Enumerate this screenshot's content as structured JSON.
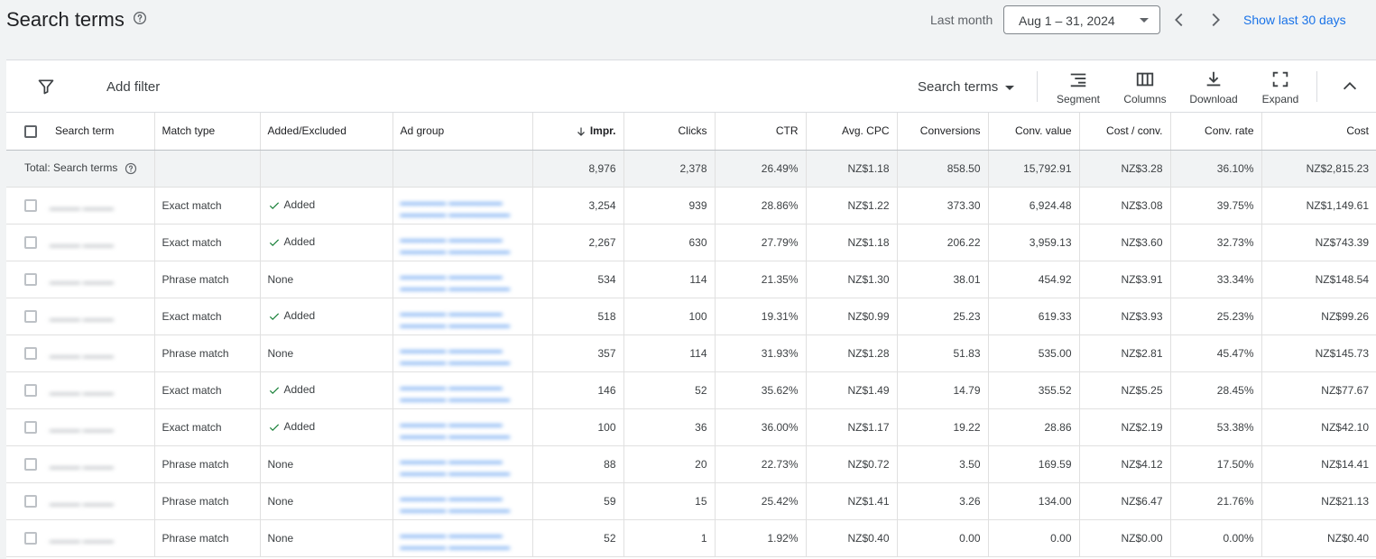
{
  "header": {
    "title": "Search terms",
    "date_label": "Last month",
    "date_range": "Aug 1 – 31, 2024",
    "show_last": "Show last 30 days"
  },
  "toolbar": {
    "add_filter": "Add filter",
    "view_select": "Search terms",
    "segment": "Segment",
    "columns": "Columns",
    "download": "Download",
    "expand": "Expand"
  },
  "table": {
    "headers": {
      "search_term": "Search term",
      "match_type": "Match type",
      "added_excluded": "Added/Excluded",
      "ad_group": "Ad group",
      "impr": "Impr.",
      "clicks": "Clicks",
      "ctr": "CTR",
      "avg_cpc": "Avg. CPC",
      "conversions": "Conversions",
      "conv_value": "Conv. value",
      "cost_per_conv": "Cost / conv.",
      "conv_rate": "Conv. rate",
      "cost": "Cost"
    },
    "total": {
      "label": "Total: Search terms",
      "impr": "8,976",
      "clicks": "2,378",
      "ctr": "26.49%",
      "avg_cpc": "NZ$1.18",
      "conversions": "858.50",
      "conv_value": "15,792.91",
      "cost_per_conv": "NZ$3.28",
      "conv_rate": "36.10%",
      "cost": "NZ$2,815.23"
    },
    "rows": [
      {
        "match_type": "Exact match",
        "status": "Added",
        "impr": "3,254",
        "clicks": "939",
        "ctr": "28.86%",
        "avg_cpc": "NZ$1.22",
        "conversions": "373.30",
        "conv_value": "6,924.48",
        "cost_per_conv": "NZ$3.08",
        "conv_rate": "39.75%",
        "cost": "NZ$1,149.61"
      },
      {
        "match_type": "Exact match",
        "status": "Added",
        "impr": "2,267",
        "clicks": "630",
        "ctr": "27.79%",
        "avg_cpc": "NZ$1.18",
        "conversions": "206.22",
        "conv_value": "3,959.13",
        "cost_per_conv": "NZ$3.60",
        "conv_rate": "32.73%",
        "cost": "NZ$743.39"
      },
      {
        "match_type": "Phrase match",
        "status": "None",
        "impr": "534",
        "clicks": "114",
        "ctr": "21.35%",
        "avg_cpc": "NZ$1.30",
        "conversions": "38.01",
        "conv_value": "454.92",
        "cost_per_conv": "NZ$3.91",
        "conv_rate": "33.34%",
        "cost": "NZ$148.54"
      },
      {
        "match_type": "Exact match",
        "status": "Added",
        "impr": "518",
        "clicks": "100",
        "ctr": "19.31%",
        "avg_cpc": "NZ$0.99",
        "conversions": "25.23",
        "conv_value": "619.33",
        "cost_per_conv": "NZ$3.93",
        "conv_rate": "25.23%",
        "cost": "NZ$99.26"
      },
      {
        "match_type": "Phrase match",
        "status": "None",
        "impr": "357",
        "clicks": "114",
        "ctr": "31.93%",
        "avg_cpc": "NZ$1.28",
        "conversions": "51.83",
        "conv_value": "535.00",
        "cost_per_conv": "NZ$2.81",
        "conv_rate": "45.47%",
        "cost": "NZ$145.73"
      },
      {
        "match_type": "Exact match",
        "status": "Added",
        "impr": "146",
        "clicks": "52",
        "ctr": "35.62%",
        "avg_cpc": "NZ$1.49",
        "conversions": "14.79",
        "conv_value": "355.52",
        "cost_per_conv": "NZ$5.25",
        "conv_rate": "28.45%",
        "cost": "NZ$77.67"
      },
      {
        "match_type": "Exact match",
        "status": "Added",
        "impr": "100",
        "clicks": "36",
        "ctr": "36.00%",
        "avg_cpc": "NZ$1.17",
        "conversions": "19.22",
        "conv_value": "28.86",
        "cost_per_conv": "NZ$2.19",
        "conv_rate": "53.38%",
        "cost": "NZ$42.10"
      },
      {
        "match_type": "Phrase match",
        "status": "None",
        "impr": "88",
        "clicks": "20",
        "ctr": "22.73%",
        "avg_cpc": "NZ$0.72",
        "conversions": "3.50",
        "conv_value": "169.59",
        "cost_per_conv": "NZ$4.12",
        "conv_rate": "17.50%",
        "cost": "NZ$14.41"
      },
      {
        "match_type": "Phrase match",
        "status": "None",
        "impr": "59",
        "clicks": "15",
        "ctr": "25.42%",
        "avg_cpc": "NZ$1.41",
        "conversions": "3.26",
        "conv_value": "134.00",
        "cost_per_conv": "NZ$6.47",
        "conv_rate": "21.76%",
        "cost": "NZ$21.13"
      },
      {
        "match_type": "Phrase match",
        "status": "None",
        "impr": "52",
        "clicks": "1",
        "ctr": "1.92%",
        "avg_cpc": "NZ$0.40",
        "conversions": "0.00",
        "conv_value": "0.00",
        "cost_per_conv": "NZ$0.00",
        "conv_rate": "0.00%",
        "cost": "NZ$0.40"
      }
    ]
  },
  "colors": {
    "accent": "#1a73e8",
    "added_check": "#188038",
    "total_row_bg": "#f1f3f4"
  }
}
